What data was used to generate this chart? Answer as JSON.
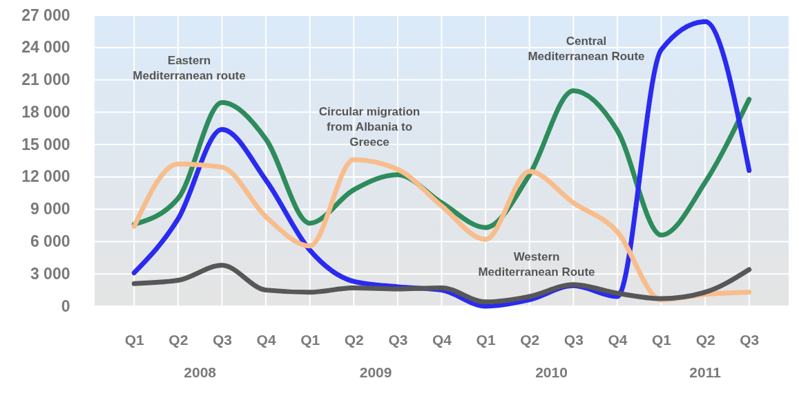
{
  "chart_data": {
    "type": "line",
    "categories": [
      "Q1",
      "Q2",
      "Q3",
      "Q4",
      "Q1",
      "Q2",
      "Q3",
      "Q4",
      "Q1",
      "Q2",
      "Q3",
      "Q4",
      "Q1",
      "Q2",
      "Q3"
    ],
    "series": [
      {
        "name": "Eastern Mediterranean route",
        "color": "#2e8b5c",
        "values": [
          7600,
          10000,
          18900,
          15500,
          7700,
          10800,
          12200,
          9600,
          7300,
          12200,
          20000,
          16300,
          6600,
          11500,
          19200
        ]
      },
      {
        "name": "Central Mediterranean Route",
        "color": "#2a2af0",
        "values": [
          3100,
          8100,
          16400,
          11700,
          5200,
          2300,
          1800,
          1500,
          0,
          600,
          1900,
          900,
          23800,
          26400,
          12600
        ]
      },
      {
        "name": "Circular migration from Albania to Greece",
        "color": "#f8bd8c",
        "values": [
          7400,
          13200,
          12900,
          8300,
          5600,
          13600,
          12700,
          9300,
          6200,
          12500,
          9600,
          6900,
          600,
          1100,
          1300
        ]
      },
      {
        "name": "Western Mediterranean Route",
        "color": "#575757",
        "values": [
          2100,
          2400,
          3800,
          1500,
          1300,
          1700,
          1600,
          1700,
          400,
          900,
          2000,
          1200,
          700,
          1300,
          3400
        ]
      }
    ],
    "annotations": [
      "2008",
      "2009",
      "2010",
      "2011"
    ],
    "ylim": [
      0,
      27000
    ],
    "yticks": [
      0,
      {
        "value": 3000,
        "label": "3 000"
      },
      {
        "value": 6000,
        "label": "6 000"
      },
      {
        "value": 9000,
        "label": "9 000"
      },
      {
        "value": 12000,
        "label": "12 000"
      },
      {
        "value": 15000,
        "label": "15 000"
      },
      {
        "value": 18000,
        "label": "18 000"
      },
      {
        "value": 21000,
        "label": "21 000"
      },
      {
        "value": 24000,
        "label": "24 000"
      },
      {
        "value": 27000,
        "label": "27 000"
      }
    ],
    "grid": true,
    "legend": false,
    "marker": "none",
    "line_style": "solid"
  }
}
